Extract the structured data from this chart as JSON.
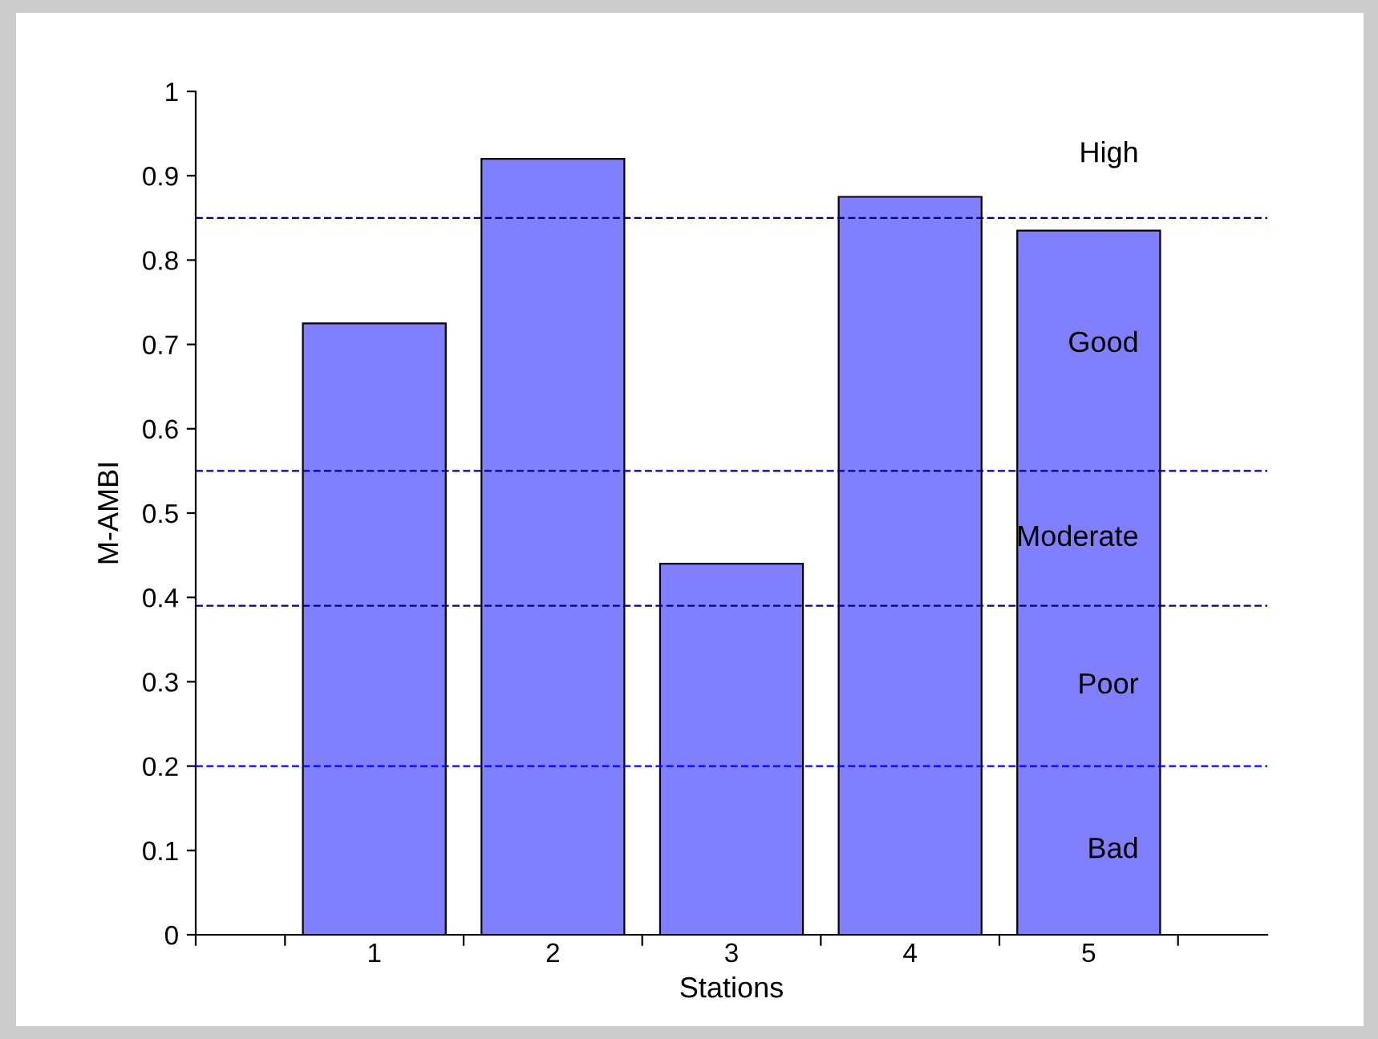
{
  "chart_data": {
    "type": "bar",
    "xlabel": "Stations",
    "ylabel": "M-AMBI",
    "categories": [
      "1",
      "2",
      "3",
      "4",
      "5"
    ],
    "values": [
      0.725,
      0.92,
      0.44,
      0.875,
      0.835
    ],
    "color": "#8080ff",
    "ylim": [
      0,
      1
    ],
    "yticks": [
      0,
      0.1,
      0.2,
      0.3,
      0.4,
      0.5,
      0.6,
      0.7,
      0.8,
      0.9,
      1
    ],
    "grid": false,
    "legend": false,
    "ref_lines": [
      {
        "axis": "y",
        "value": 0.85,
        "color": "#000080",
        "line_style": "dashed"
      },
      {
        "axis": "y",
        "value": 0.55,
        "color": "#000080",
        "line_style": "dashed"
      },
      {
        "axis": "y",
        "value": 0.39,
        "color": "#000080",
        "line_style": "dashed"
      },
      {
        "axis": "y",
        "value": 0.2,
        "color": "#0000ff",
        "line_style": "dashed"
      }
    ],
    "annotations": [
      "High",
      "Good",
      "Moderate",
      "Poor",
      "Bad"
    ]
  }
}
